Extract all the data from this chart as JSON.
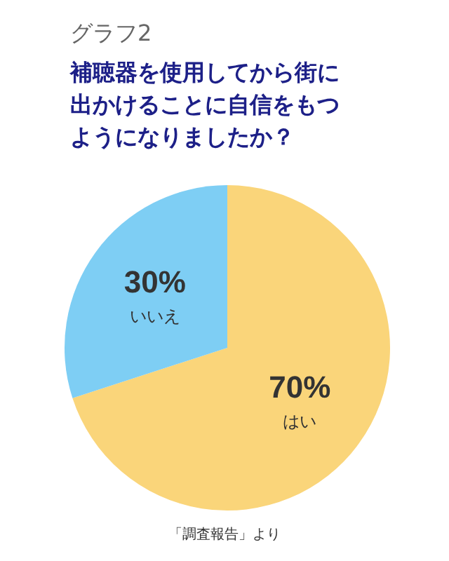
{
  "chart_data": {
    "type": "pie",
    "title": "グラフ2",
    "subtitle": "補聴器を使用してから街に出かけることに自信をもつようになりましたか？",
    "categories": [
      "はい",
      "いいえ"
    ],
    "values": [
      70,
      30
    ],
    "colors": [
      "#fad57a",
      "#7ecef4"
    ],
    "value_labels": [
      "70%",
      "30%"
    ],
    "legend": false,
    "annotations": [
      "「調査報告」より"
    ]
  }
}
